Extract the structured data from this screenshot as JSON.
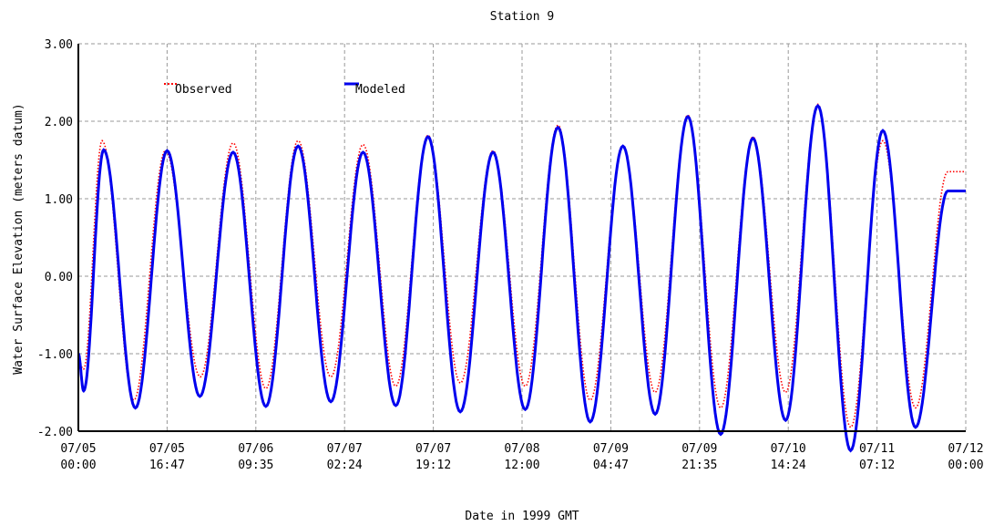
{
  "chart_data": {
    "type": "line",
    "title": "Station 9",
    "xlabel": "Date in 1999 GMT",
    "ylabel": "Water Surface Elevation (meters datum)",
    "ylim": [
      -2.0,
      3.0
    ],
    "yticks": [
      "3.00",
      "2.00",
      "1.00",
      "0.00",
      "-1.00",
      "-2.00"
    ],
    "xlim_hours": [
      0,
      168
    ],
    "xticks": [
      {
        "date": "07/05",
        "time": "00:00"
      },
      {
        "date": "07/05",
        "time": "16:47"
      },
      {
        "date": "07/06",
        "time": "09:35"
      },
      {
        "date": "07/07",
        "time": "02:24"
      },
      {
        "date": "07/07",
        "time": "19:12"
      },
      {
        "date": "07/08",
        "time": "12:00"
      },
      {
        "date": "07/09",
        "time": "04:47"
      },
      {
        "date": "07/09",
        "time": "21:35"
      },
      {
        "date": "07/10",
        "time": "14:24"
      },
      {
        "date": "07/11",
        "time": "07:12"
      },
      {
        "date": "07/12",
        "time": "00:00"
      }
    ],
    "grid": true,
    "legend": "top-left",
    "series": [
      {
        "name": "Observed",
        "color": "#ff0000",
        "style": "dotted",
        "x_hours": [
          0,
          1,
          4.5,
          10.5,
          16.5,
          23.1,
          29.3,
          35.5,
          41.6,
          47.8,
          53.9,
          60.1,
          66.2,
          72.3,
          78.5,
          84.6,
          90.8,
          96.9,
          103.1,
          109.2,
          115.4,
          121.6,
          127.7,
          133.9,
          140.0,
          146.2,
          152.3,
          158.5,
          164.6,
          168
        ],
        "values": [
          -1.1,
          -1.2,
          1.75,
          -1.6,
          1.62,
          -1.3,
          1.72,
          -1.45,
          1.75,
          -1.3,
          1.7,
          -1.42,
          1.82,
          -1.38,
          1.62,
          -1.42,
          1.95,
          -1.6,
          1.68,
          -1.5,
          2.08,
          -1.7,
          1.8,
          -1.5,
          2.22,
          -1.95,
          1.75,
          -1.7,
          1.35,
          1.35
        ]
      },
      {
        "name": "Modeled",
        "color": "#0000ee",
        "style": "solid",
        "x_hours": [
          0,
          1,
          4.8,
          10.8,
          16.8,
          23.0,
          29.3,
          35.5,
          41.6,
          47.8,
          53.9,
          60.1,
          66.2,
          72.3,
          78.5,
          84.6,
          90.8,
          96.9,
          103.1,
          109.2,
          115.4,
          121.6,
          127.7,
          133.9,
          140.0,
          146.2,
          152.3,
          158.5,
          164.6,
          168
        ],
        "values": [
          -1.0,
          -1.48,
          1.63,
          -1.7,
          1.62,
          -1.55,
          1.6,
          -1.68,
          1.68,
          -1.62,
          1.6,
          -1.67,
          1.8,
          -1.75,
          1.6,
          -1.72,
          1.92,
          -1.88,
          1.68,
          -1.78,
          2.06,
          -2.04,
          1.78,
          -1.86,
          2.2,
          -2.25,
          1.88,
          -1.95,
          1.1,
          1.1
        ]
      }
    ]
  }
}
